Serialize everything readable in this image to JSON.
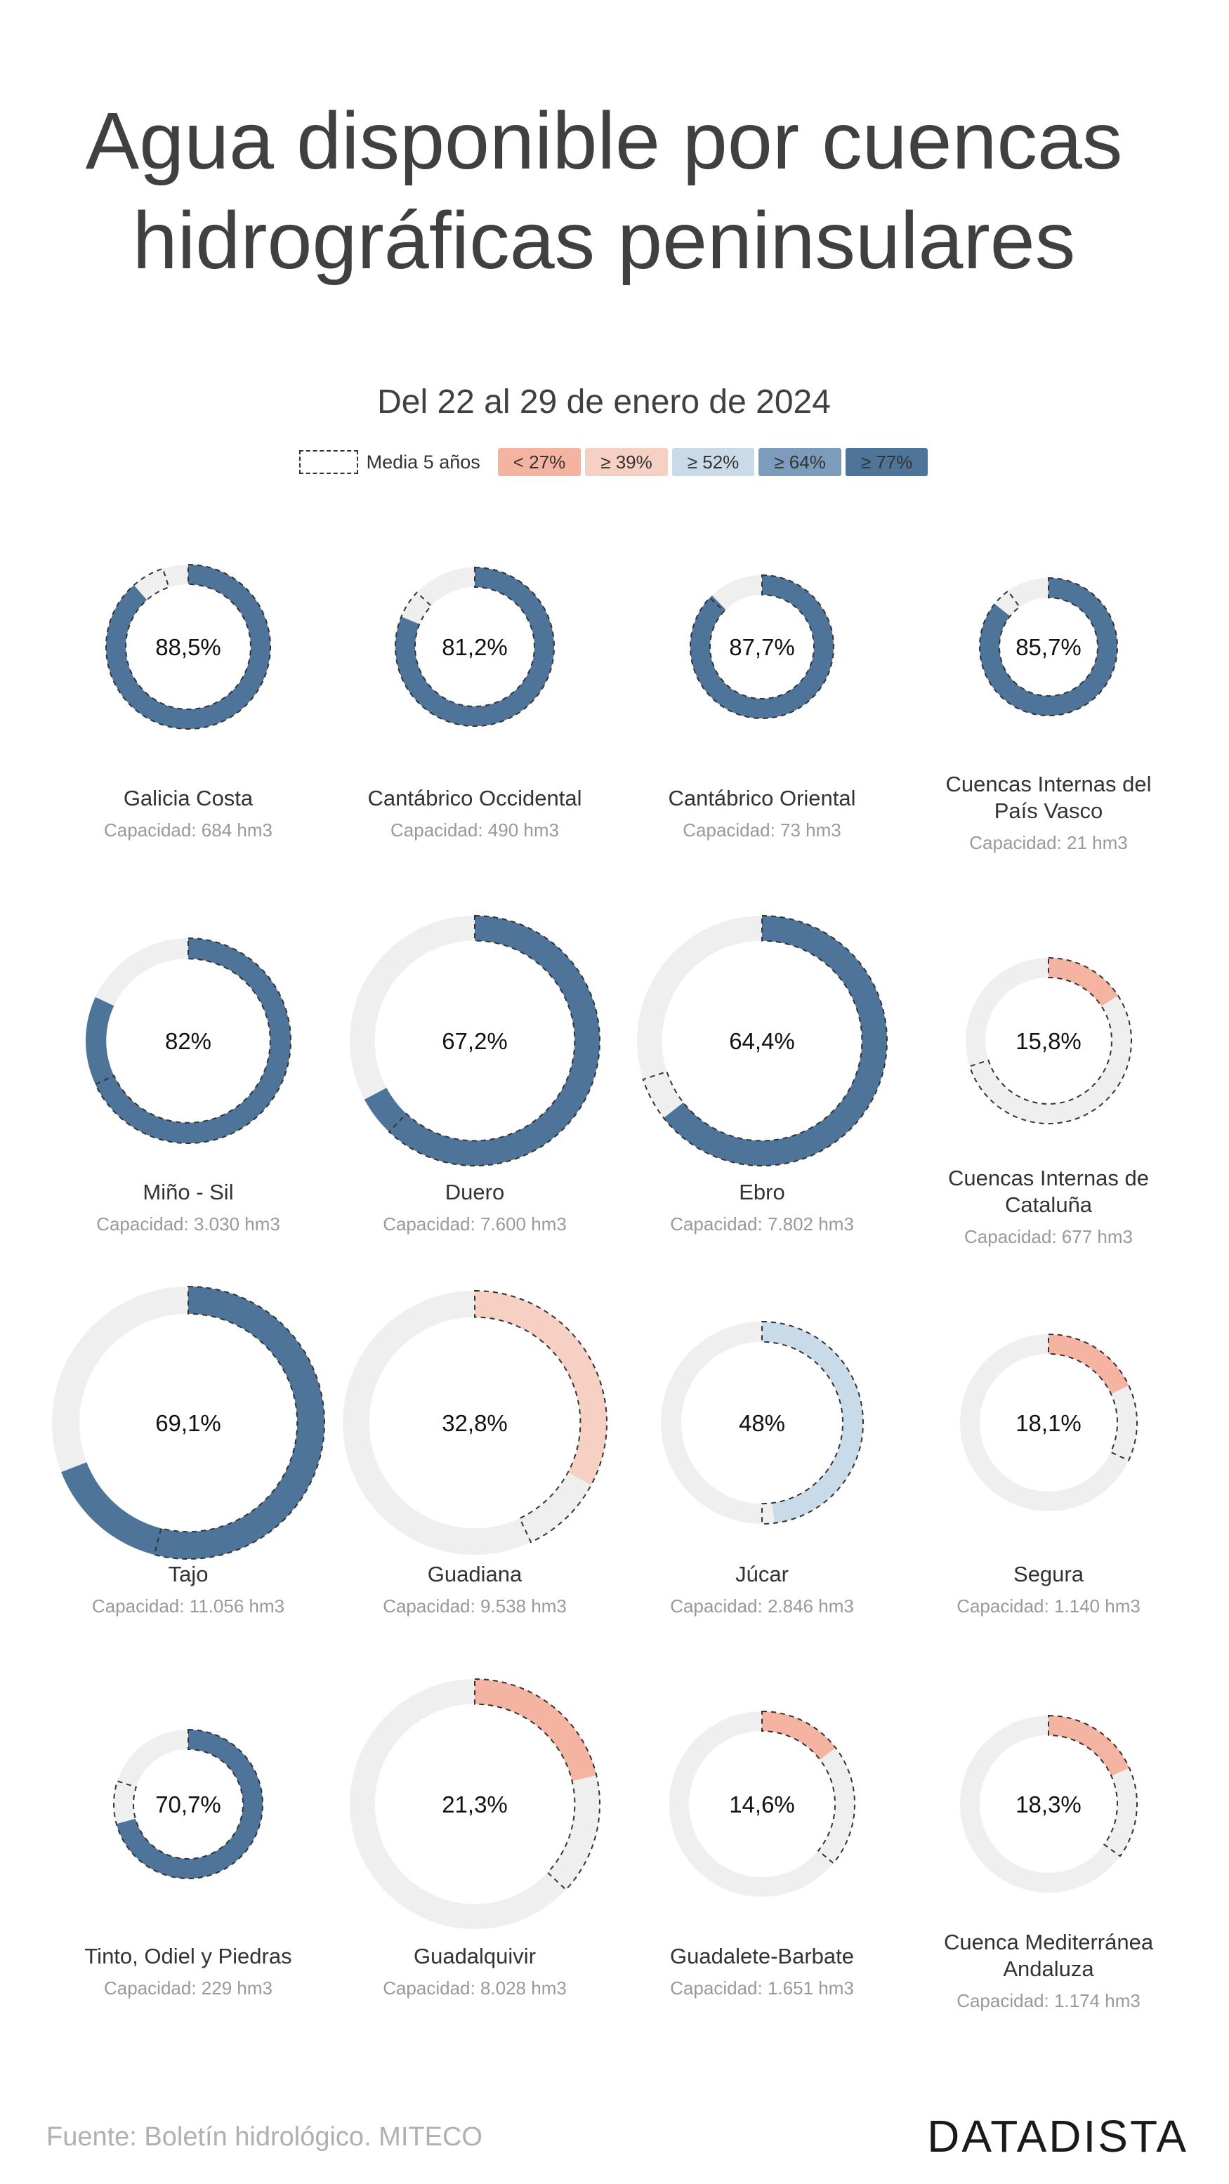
{
  "title_line1": "Agua disponible por cuencas",
  "title_line2": "hidrográficas peninsulares",
  "subtitle": "Del 22 al 29 de enero de 2024",
  "legend": {
    "average_label": "Media 5 años",
    "items": [
      {
        "label": "< 27%",
        "color": "#f5b3a1"
      },
      {
        "label": "≥ 39%",
        "color": "#f6d0c3"
      },
      {
        "label": "≥ 52%",
        "color": "#c9dbe9"
      },
      {
        "label": "≥ 64%",
        "color": "#7b9cbb"
      },
      {
        "label": "≥ 77%",
        "color": "#4f749a"
      }
    ]
  },
  "source": "Fuente: Boletín hidrológico. MITECO",
  "brand": "DATADISTA",
  "chart_data": {
    "type": "donut-grid",
    "capacity_prefix": "Capacidad: ",
    "capacity_unit": "hm3",
    "basins": [
      {
        "name": "Galicia Costa",
        "capacity": "684",
        "percent": "88,5%",
        "value": 88.5,
        "average": 95,
        "color": "#4f749a"
      },
      {
        "name": "Cantábrico Occidental",
        "capacity": "490",
        "percent": "81,2%",
        "value": 81.2,
        "average": 87,
        "color": "#4f749a"
      },
      {
        "name": "Cantábrico Oriental",
        "capacity": "73",
        "percent": "87,7%",
        "value": 87.7,
        "average": 87,
        "color": "#4f749a"
      },
      {
        "name": "Cuencas Internas del País Vasco",
        "capacity": "21",
        "percent": "85,7%",
        "value": 85.7,
        "average": 90,
        "color": "#4f749a"
      },
      {
        "name": "Miño - Sil",
        "capacity": "3.030",
        "percent": "82%",
        "value": 82,
        "average": 68,
        "color": "#4f749a"
      },
      {
        "name": "Duero",
        "capacity": "7.600",
        "percent": "67,2%",
        "value": 67.2,
        "average": 62,
        "color": "#4f749a"
      },
      {
        "name": "Ebro",
        "capacity": "7.802",
        "percent": "64,4%",
        "value": 64.4,
        "average": 70,
        "color": "#4f749a"
      },
      {
        "name": "Cuencas Internas de Cataluña",
        "capacity": "677",
        "percent": "15,8%",
        "value": 15.8,
        "average": 70,
        "color": "#f5b3a1"
      },
      {
        "name": "Tajo",
        "capacity": "11.056",
        "percent": "69,1%",
        "value": 69.1,
        "average": 54,
        "color": "#4f749a"
      },
      {
        "name": "Guadiana",
        "capacity": "9.538",
        "percent": "32,8%",
        "value": 32.8,
        "average": 43,
        "color": "#f6d0c3"
      },
      {
        "name": "Júcar",
        "capacity": "2.846",
        "percent": "48%",
        "value": 48,
        "average": 50,
        "color": "#c9dbe9"
      },
      {
        "name": "Segura",
        "capacity": "1.140",
        "percent": "18,1%",
        "value": 18.1,
        "average": 32,
        "color": "#f5b3a1"
      },
      {
        "name": "Tinto, Odiel y Piedras",
        "capacity": "229",
        "percent": "70,7%",
        "value": 70.7,
        "average": 80,
        "color": "#4f749a"
      },
      {
        "name": "Guadalquivir",
        "capacity": "8.028",
        "percent": "21,3%",
        "value": 21.3,
        "average": 37,
        "color": "#f5b3a1"
      },
      {
        "name": "Guadalete-Barbate",
        "capacity": "1.651",
        "percent": "14,6%",
        "value": 14.6,
        "average": 36,
        "color": "#f5b3a1"
      },
      {
        "name": "Cuenca Mediterránea Andaluza",
        "capacity": "1.174",
        "percent": "18,3%",
        "value": 18.3,
        "average": 35,
        "color": "#f5b3a1"
      }
    ]
  }
}
